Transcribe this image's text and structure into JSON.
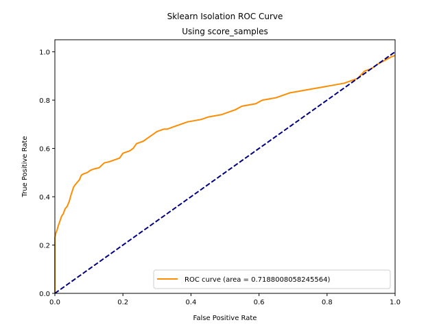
{
  "chart_data": {
    "type": "line",
    "title": "Sklearn Isolation ROC Curve",
    "subtitle": "Using score_samples",
    "xlabel": "False Positive Rate",
    "ylabel": "True Positive Rate",
    "xlim": [
      0.0,
      1.0
    ],
    "ylim": [
      0.0,
      1.05
    ],
    "xticks": [
      "0.0",
      "0.2",
      "0.4",
      "0.6",
      "0.8",
      "1.0"
    ],
    "yticks": [
      "0.0",
      "0.2",
      "0.4",
      "0.6",
      "0.8",
      "1.0"
    ],
    "grid": false,
    "legend_position": "lower-right",
    "series": [
      {
        "name": "ROC curve (area = 0.7188008058245564)",
        "color": "#ff8c00",
        "style": "solid",
        "x": [
          0.0,
          0.0,
          0.003,
          0.006,
          0.01,
          0.015,
          0.02,
          0.025,
          0.03,
          0.036,
          0.042,
          0.048,
          0.055,
          0.06,
          0.066,
          0.072,
          0.078,
          0.085,
          0.095,
          0.105,
          0.115,
          0.13,
          0.145,
          0.16,
          0.17,
          0.18,
          0.19,
          0.2,
          0.21,
          0.22,
          0.23,
          0.24,
          0.25,
          0.26,
          0.27,
          0.28,
          0.29,
          0.3,
          0.31,
          0.32,
          0.33,
          0.35,
          0.37,
          0.39,
          0.41,
          0.43,
          0.45,
          0.47,
          0.49,
          0.51,
          0.53,
          0.55,
          0.57,
          0.59,
          0.61,
          0.63,
          0.65,
          0.67,
          0.69,
          0.71,
          0.73,
          0.75,
          0.77,
          0.79,
          0.81,
          0.83,
          0.85,
          0.87,
          0.89,
          0.91,
          0.93,
          0.95,
          0.97,
          0.99,
          1.0
        ],
        "y": [
          0.0,
          0.23,
          0.25,
          0.26,
          0.28,
          0.3,
          0.32,
          0.33,
          0.35,
          0.36,
          0.38,
          0.41,
          0.44,
          0.45,
          0.46,
          0.47,
          0.49,
          0.495,
          0.5,
          0.51,
          0.515,
          0.52,
          0.54,
          0.545,
          0.55,
          0.555,
          0.56,
          0.58,
          0.585,
          0.59,
          0.6,
          0.62,
          0.625,
          0.63,
          0.64,
          0.65,
          0.66,
          0.67,
          0.675,
          0.68,
          0.68,
          0.69,
          0.7,
          0.71,
          0.715,
          0.72,
          0.73,
          0.735,
          0.74,
          0.75,
          0.76,
          0.775,
          0.78,
          0.785,
          0.8,
          0.805,
          0.81,
          0.82,
          0.83,
          0.835,
          0.84,
          0.845,
          0.85,
          0.855,
          0.86,
          0.865,
          0.87,
          0.88,
          0.89,
          0.92,
          0.93,
          0.95,
          0.965,
          0.98,
          0.985
        ]
      },
      {
        "color": "#000080",
        "style": "dashed",
        "x": [
          0.0,
          1.0
        ],
        "y": [
          0.0,
          1.0
        ]
      }
    ]
  }
}
